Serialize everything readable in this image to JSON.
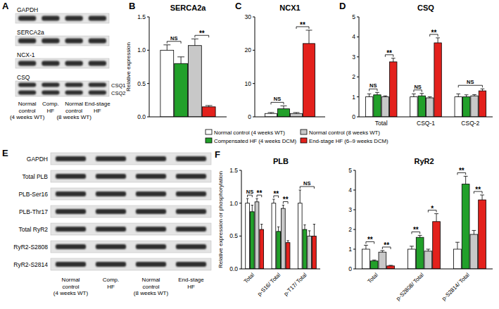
{
  "chart_data": [
    {
      "panel": "B",
      "type": "bar",
      "title": "SERCA2a",
      "ylabel": "Relative expression",
      "categories": [
        null
      ],
      "ylim": [
        0,
        1.5
      ],
      "yticks": [
        {
          "value": 0,
          "label": "0.0"
        },
        0.5,
        {
          "value": 1,
          "label": "1.0"
        },
        1.5
      ],
      "legend": "bottom",
      "series": [
        {
          "name": "Normal control (4 weeks WT)",
          "color": "#ffffff",
          "values": [
            1.0
          ],
          "errors": [
            0.08
          ]
        },
        {
          "name": "Compensated HF (4 weeks DCM)",
          "color": "#22a02a",
          "values": [
            0.8
          ],
          "errors": [
            0.1
          ]
        },
        {
          "name": "Normal control (8 weeks WT)",
          "color": "#c8c8c8",
          "values": [
            1.07
          ],
          "errors": [
            0.1
          ]
        },
        {
          "name": "End-stage HF (6–9 weeks DCM)",
          "color": "#e3211c",
          "values": [
            0.15
          ],
          "errors": [
            0.02
          ]
        }
      ],
      "annotations": [
        {
          "category": null,
          "text": "NS",
          "from": "Normal control (4 weeks WT)",
          "to": "Compensated HF (4 weeks DCM)"
        },
        {
          "category": null,
          "text": "**",
          "from": "Normal control (8 weeks WT)",
          "to": "End-stage HF (6–9 weeks DCM)"
        }
      ]
    },
    {
      "panel": "C",
      "type": "bar",
      "title": "NCX1",
      "categories": [
        null
      ],
      "ylim": [
        0,
        30
      ],
      "yticks": [
        0,
        10,
        20,
        30
      ],
      "series": [
        {
          "name": "Normal control (4 weeks WT)",
          "color": "#ffffff",
          "values": [
            1.0
          ],
          "errors": [
            0.3
          ]
        },
        {
          "name": "Compensated HF (4 weeks DCM)",
          "color": "#22a02a",
          "values": [
            2.4
          ],
          "errors": [
            0.9
          ]
        },
        {
          "name": "Normal control (8 weeks WT)",
          "color": "#c8c8c8",
          "values": [
            1.0
          ],
          "errors": [
            0.3
          ]
        },
        {
          "name": "End-stage HF (6–9 weeks DCM)",
          "color": "#e3211c",
          "values": [
            22.0
          ],
          "errors": [
            4.0
          ]
        }
      ],
      "annotations": [
        {
          "category": null,
          "text": "NS",
          "from": "Normal control (4 weeks WT)",
          "to": "Compensated HF (4 weeks DCM)"
        },
        {
          "category": null,
          "text": "**",
          "from": "Normal control (8 weeks WT)",
          "to": "End-stage HF (6–9 weeks DCM)"
        }
      ]
    },
    {
      "panel": "D",
      "type": "bar",
      "title": "CSQ",
      "categories": [
        "Total",
        "CSQ-1",
        "CSQ-2"
      ],
      "ylim": [
        0,
        5
      ],
      "yticks": [
        0,
        1,
        2,
        3,
        4,
        5
      ],
      "series": [
        {
          "name": "Normal control (4 weeks WT)",
          "color": "#ffffff",
          "values": [
            1.0,
            1.0,
            1.0
          ],
          "errors": [
            0.15,
            0.15,
            0.15
          ]
        },
        {
          "name": "Compensated HF (4 weeks DCM)",
          "color": "#22a02a",
          "values": [
            1.1,
            1.05,
            1.0
          ],
          "errors": [
            0.12,
            0.12,
            0.1
          ]
        },
        {
          "name": "Normal control (8 weeks WT)",
          "color": "#c8c8c8",
          "values": [
            1.0,
            0.95,
            1.05
          ],
          "errors": [
            0.05,
            0.05,
            0.06
          ]
        },
        {
          "name": "End-stage HF (6–9 weeks DCM)",
          "color": "#e3211c",
          "values": [
            2.75,
            3.7,
            1.3
          ],
          "errors": [
            0.18,
            0.25,
            0.1
          ]
        }
      ],
      "annotations": [
        {
          "category": "Total",
          "text": "NS",
          "from": "Normal control (4 weeks WT)",
          "to": "Compensated HF (4 weeks DCM)"
        },
        {
          "category": "Total",
          "text": "**",
          "from": "Normal control (8 weeks WT)",
          "to": "End-stage HF (6–9 weeks DCM)"
        },
        {
          "category": "CSQ-1",
          "text": "NS",
          "from": "Normal control (4 weeks WT)",
          "to": "Compensated HF (4 weeks DCM)"
        },
        {
          "category": "CSQ-1",
          "text": "**",
          "from": "Normal control (8 weeks WT)",
          "to": "End-stage HF (6–9 weeks DCM)"
        },
        {
          "category": "CSQ-2",
          "text": "NS",
          "from": "Normal control (4 weeks WT)",
          "to": "End-stage HF (6–9 weeks DCM)"
        }
      ]
    },
    {
      "panel": "F",
      "type": "bar",
      "title": "PLB",
      "ylabel": "Relative expression or phosphorylation",
      "categories": [
        "Total",
        "p-S16/ Total",
        "p-T17/ Total"
      ],
      "ylim": [
        0,
        1.5
      ],
      "yticks": [
        {
          "value": 0,
          "label": "0.0"
        },
        0.5,
        {
          "value": 1,
          "label": "1.0"
        },
        1.5
      ],
      "series": [
        {
          "name": "Normal control (4 weeks WT)",
          "color": "#ffffff",
          "values": [
            1.0,
            1.0,
            1.0
          ],
          "errors": [
            0.07,
            0.06,
            0.2
          ]
        },
        {
          "name": "Compensated HF (4 weeks DCM)",
          "color": "#22a02a",
          "values": [
            0.87,
            0.57,
            0.6
          ],
          "errors": [
            0.1,
            0.07,
            0.07
          ]
        },
        {
          "name": "Normal control (8 weeks WT)",
          "color": "#c8c8c8",
          "values": [
            1.02,
            0.92,
            0.5
          ],
          "errors": [
            0.05,
            0.05,
            0.08
          ]
        },
        {
          "name": "End-stage HF (6–9 weeks DCM)",
          "color": "#e3211c",
          "values": [
            0.6,
            0.4,
            0.5
          ],
          "errors": [
            0.08,
            0.03,
            0.18
          ]
        }
      ],
      "annotations": [
        {
          "category": "Total",
          "text": "NS",
          "from": "Normal control (4 weeks WT)",
          "to": "Compensated HF (4 weeks DCM)"
        },
        {
          "category": "Total",
          "text": "**",
          "from": "Normal control (8 weeks WT)",
          "to": "End-stage HF (6–9 weeks DCM)"
        },
        {
          "category": "p-S16/ Total",
          "text": "**",
          "from": "Normal control (4 weeks WT)",
          "to": "Compensated HF (4 weeks DCM)"
        },
        {
          "category": "p-S16/ Total",
          "text": "**",
          "from": "Normal control (8 weeks WT)",
          "to": "End-stage HF (6–9 weeks DCM)"
        },
        {
          "category": "p-T17/ Total",
          "text": "NS",
          "from": "Normal control (4 weeks WT)",
          "to": "End-stage HF (6–9 weeks DCM)"
        }
      ]
    },
    {
      "type": "bar",
      "title": "RyR2",
      "categories": [
        "Total",
        "p-S2808/ Total",
        "p-S2814/ Total"
      ],
      "ylim": [
        0,
        5
      ],
      "yticks": [
        0,
        1,
        2,
        3,
        4,
        5
      ],
      "series": [
        {
          "name": "Normal control (4 weeks WT)",
          "color": "#ffffff",
          "values": [
            1.0,
            1.0,
            1.0
          ],
          "errors": [
            0.2,
            0.15,
            0.35
          ]
        },
        {
          "name": "Compensated HF (4 weeks DCM)",
          "color": "#22a02a",
          "values": [
            0.4,
            1.6,
            4.3
          ],
          "errors": [
            0.05,
            0.1,
            0.4
          ]
        },
        {
          "name": "Normal control (8 weeks WT)",
          "color": "#c8c8c8",
          "values": [
            0.85,
            0.9,
            1.75
          ],
          "errors": [
            0.08,
            0.1,
            0.2
          ]
        },
        {
          "name": "End-stage HF (6–9 weeks DCM)",
          "color": "#e3211c",
          "values": [
            0.15,
            2.4,
            3.5
          ],
          "errors": [
            0.03,
            0.4,
            0.25
          ]
        }
      ],
      "annotations": [
        {
          "category": "Total",
          "text": "**",
          "from": "Normal control (4 weeks WT)",
          "to": "Compensated HF (4 weeks DCM)"
        },
        {
          "category": "Total",
          "text": "**",
          "from": "Normal control (8 weeks WT)",
          "to": "End-stage HF (6–9 weeks DCM)"
        },
        {
          "category": "p-S2808/ Total",
          "text": "**",
          "from": "Normal control (4 weeks WT)",
          "to": "Compensated HF (4 weeks DCM)"
        },
        {
          "category": "p-S2808/ Total",
          "text": "*",
          "from": "Normal control (8 weeks WT)",
          "to": "End-stage HF (6–9 weeks DCM)"
        },
        {
          "category": "p-S2814/ Total",
          "text": "**",
          "from": "Normal control (4 weeks WT)",
          "to": "Compensated HF (4 weeks DCM)"
        },
        {
          "category": "p-S2814/ Total",
          "text": "**",
          "from": "Normal control (8 weeks WT)",
          "to": "End-stage HF (6–9 weeks DCM)"
        }
      ]
    }
  ],
  "blots": [
    {
      "panel": "A",
      "rows": [
        {
          "label": "GAPDH"
        },
        {
          "label": "SERCA2a"
        },
        {
          "label": "NCX-1"
        },
        {
          "label": "CSQ",
          "bands": [
            "CSQ1",
            "CSQ2"
          ]
        }
      ],
      "lanes": [
        "Normal control (4 weeks WT)",
        "Comp. HF",
        "Normal control (8 weeks WT)",
        "End-stage HF"
      ]
    },
    {
      "panel": "E",
      "rows": [
        {
          "label": "GAPDH"
        },
        {
          "label": "Total PLB"
        },
        {
          "label": "PLB-Ser16"
        },
        {
          "label": "PLB-Thr17"
        },
        {
          "label": "Total RyR2"
        },
        {
          "label": "RyR2-S2808"
        },
        {
          "label": "RyR2-S2814"
        }
      ],
      "lanes": [
        "Normal control (4 weeks WT)",
        "Comp. HF",
        "Normal control (8 weeks WT)",
        "End-stage HF"
      ]
    }
  ]
}
